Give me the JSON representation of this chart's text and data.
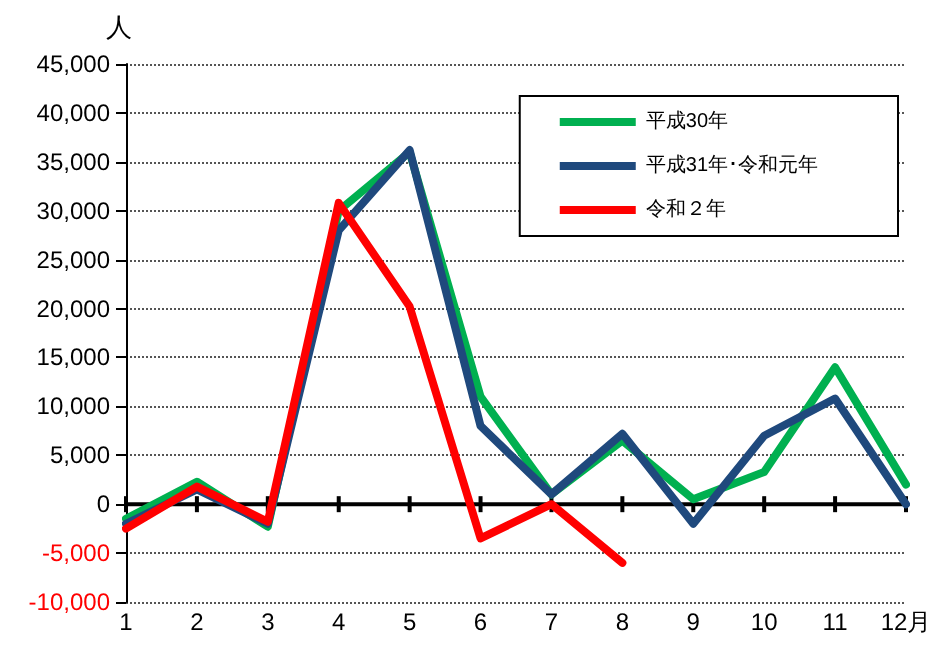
{
  "chart_data": {
    "type": "line",
    "ylabel": "人",
    "categories": [
      "1",
      "2",
      "3",
      "4",
      "5",
      "6",
      "7",
      "8",
      "9",
      "10",
      "11",
      "12月"
    ],
    "series": [
      {
        "name": "平成30年",
        "color": "#00b050",
        "values": [
          -1500,
          2300,
          -2300,
          30000,
          36000,
          11000,
          1000,
          6500,
          500,
          3300,
          14000,
          2000
        ]
      },
      {
        "name": "平成31年･令和元年",
        "color": "#1f497d",
        "values": [
          -2000,
          1500,
          -2000,
          28000,
          36200,
          8000,
          1000,
          7200,
          -2000,
          7000,
          10800,
          0
        ]
      },
      {
        "name": "令和２年",
        "color": "#ff0000",
        "values": [
          -2500,
          1800,
          -1800,
          30800,
          20200,
          -3500,
          0,
          -6000,
          null,
          null,
          null,
          null
        ]
      }
    ],
    "ylim": [
      -10000,
      45000
    ],
    "yticks": [
      {
        "value": -10000,
        "label": "-10,000"
      },
      {
        "value": -5000,
        "label": "-5,000"
      },
      0,
      {
        "value": 5000,
        "label": "5,000"
      },
      {
        "value": 10000,
        "label": "10,000"
      },
      {
        "value": 15000,
        "label": "15,000"
      },
      {
        "value": 20000,
        "label": "20,000"
      },
      {
        "value": 25000,
        "label": "25,000"
      },
      {
        "value": 30000,
        "label": "30,000"
      },
      {
        "value": 35000,
        "label": "35,000"
      },
      {
        "value": 40000,
        "label": "40,000"
      },
      {
        "value": 45000,
        "label": "45,000"
      }
    ],
    "grid": "y",
    "legend": "top right",
    "marker": "none",
    "line_style": "solid"
  }
}
